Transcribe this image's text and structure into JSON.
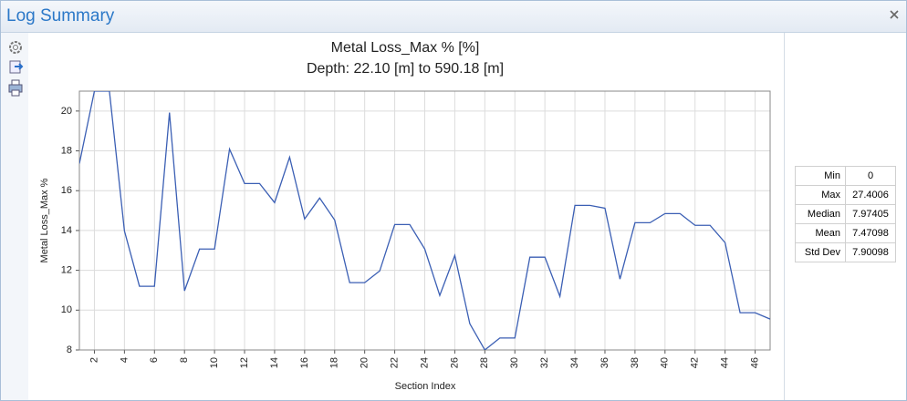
{
  "window_title": "Log Summary",
  "chart_data": {
    "type": "line",
    "title": "Metal Loss_Max % [%]",
    "subtitle": "Depth: 22.10 [m] to 590.18 [m]",
    "x_label": "Section Index",
    "y_label": "Metal Loss_Max %",
    "x": [
      1,
      2,
      3,
      4,
      5,
      6,
      7,
      8,
      9,
      10,
      11,
      12,
      13,
      14,
      15,
      16,
      17,
      18,
      19,
      20,
      21,
      22,
      23,
      24,
      25,
      26,
      27,
      28,
      29,
      30,
      31,
      32,
      33,
      34,
      35,
      36,
      37,
      38,
      39,
      40,
      41,
      42,
      43,
      44,
      45,
      46,
      47
    ],
    "series": [
      {
        "name": "Metal Loss_Max %",
        "color": "#3b5fb4",
        "values": [
          17.36,
          21,
          21,
          13.98,
          11.2,
          11.2,
          19.92,
          10.97,
          13.07,
          13.07,
          18.09,
          16.36,
          16.36,
          15.4,
          17.68,
          14.58,
          15.63,
          14.53,
          11.38,
          11.38,
          11.97,
          14.3,
          14.3,
          13.07,
          10.74,
          12.75,
          9.32,
          8.0,
          8.6,
          8.6,
          12.66,
          12.66,
          10.69,
          15.26,
          15.26,
          15.12,
          11.56,
          14.39,
          14.39,
          14.85,
          14.85,
          14.26,
          14.26,
          13.39,
          9.87,
          9.87,
          9.55
        ]
      }
    ],
    "xlim": [
      1,
      47
    ],
    "xticks": [
      2,
      4,
      6,
      8,
      10,
      12,
      14,
      16,
      18,
      20,
      22,
      24,
      26,
      28,
      30,
      32,
      34,
      36,
      38,
      40,
      42,
      44,
      46
    ],
    "ylim": [
      8,
      21
    ],
    "yticks": [
      8,
      10,
      12,
      14,
      16,
      18,
      20
    ],
    "grid": true
  },
  "stats": {
    "rows": [
      [
        "Min",
        0
      ],
      [
        "Max",
        27.4006
      ],
      [
        "Median",
        7.97405
      ],
      [
        "Mean",
        7.47098
      ],
      [
        "Std Dev",
        7.90098
      ]
    ]
  }
}
